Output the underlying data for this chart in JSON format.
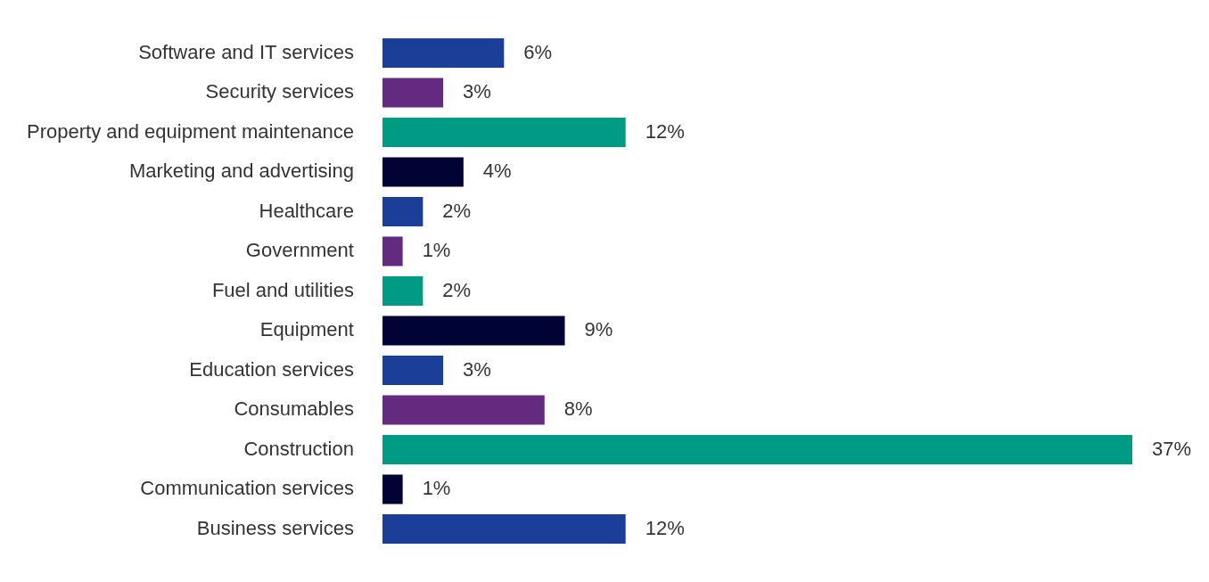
{
  "chart_data": {
    "type": "bar",
    "orientation": "horizontal",
    "categories": [
      "Software and IT services",
      "Security services",
      "Property and equipment maintenance",
      "Marketing and advertising",
      "Healthcare",
      "Government",
      "Fuel and utilities",
      "Equipment",
      "Education services",
      "Consumables",
      "Construction",
      "Communication services",
      "Business services"
    ],
    "values": [
      6,
      3,
      12,
      4,
      2,
      1,
      2,
      9,
      3,
      8,
      37,
      1,
      12
    ],
    "value_labels": [
      "6%",
      "3%",
      "12%",
      "4%",
      "2%",
      "1%",
      "2%",
      "9%",
      "3%",
      "8%",
      "37%",
      "1%",
      "12%"
    ],
    "colors": [
      "#1b3f98",
      "#642a80",
      "#009b85",
      "#000333",
      "#1b3f98",
      "#642a80",
      "#009b85",
      "#000333",
      "#1b3f98",
      "#642a80",
      "#009b85",
      "#000333",
      "#1b3f98"
    ],
    "legend": false
  }
}
